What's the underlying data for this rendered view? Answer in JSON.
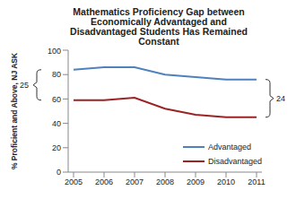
{
  "chart_data": {
    "type": "line",
    "title": "Mathematics Proficiency Gap between Economically Advantaged and Disadvantaged Students Has Remained Constant",
    "y_label": "% Proficient and Above, NJ ASK",
    "categories": [
      "2005",
      "2006",
      "2007",
      "2008",
      "2009",
      "2010",
      "2011"
    ],
    "series": [
      {
        "name": "Advantaged",
        "color": "#4f81bd",
        "values": [
          84,
          86,
          86,
          80,
          78,
          76,
          76
        ]
      },
      {
        "name": "Disadvantaged",
        "color": "#9b2323",
        "values": [
          59,
          59,
          61,
          52,
          47,
          45,
          45
        ]
      }
    ],
    "ylim": [
      0,
      100
    ],
    "yticks": [
      0,
      20,
      40,
      60,
      80,
      100
    ],
    "grid": false,
    "legend": "lower right",
    "annotations": [
      "25",
      "24"
    ]
  }
}
